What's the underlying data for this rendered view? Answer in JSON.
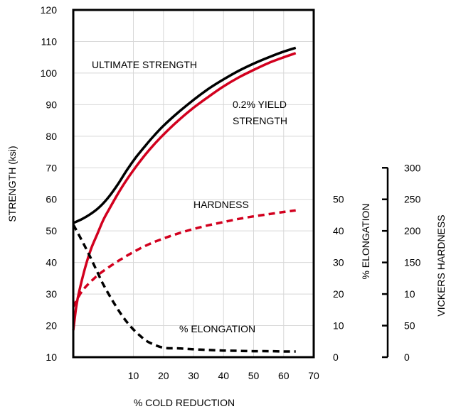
{
  "chart_data": {
    "type": "line",
    "xlabel": "% COLD REDUCTION",
    "ylabel": "STRENGTH (ksi)",
    "xlim": [
      -10,
      70
    ],
    "ylim": [
      10,
      120
    ],
    "x_ticks": [
      10,
      20,
      30,
      40,
      50,
      60,
      70
    ],
    "y_ticks": [
      10,
      20,
      30,
      40,
      50,
      60,
      70,
      80,
      90,
      100,
      110,
      120
    ],
    "grid": true,
    "legend": "none",
    "series": [
      {
        "name": "ULTIMATE STRENGTH",
        "color": "#000000",
        "style": "solid",
        "x": [
          -10,
          -7,
          -4,
          -1,
          2,
          5,
          8,
          11,
          14,
          17,
          20,
          25,
          30,
          35,
          40,
          45,
          50,
          55,
          60,
          64
        ],
        "y": [
          52.5,
          53.8,
          55.5,
          57.8,
          61,
          65,
          69.5,
          73.5,
          77,
          80.3,
          83.3,
          87.6,
          91.5,
          95,
          98,
          100.7,
          103,
          105,
          106.8,
          108
        ]
      },
      {
        "name": "0.2% YIELD STRENGTH",
        "color": "#d2001e",
        "style": "solid",
        "x": [
          -10,
          -9,
          -8,
          -6,
          -4,
          -2,
          0,
          2,
          5,
          8,
          11,
          14,
          17,
          20,
          25,
          30,
          35,
          40,
          45,
          50,
          55,
          60,
          64
        ],
        "y": [
          18.5,
          26,
          31,
          38.5,
          44.5,
          49,
          53.5,
          57,
          62,
          66.5,
          70.5,
          74.2,
          77.5,
          80.5,
          85,
          89,
          92.5,
          95.8,
          98.6,
          101,
          103.2,
          105,
          106.3
        ]
      },
      {
        "name": "HARDNESS",
        "color": "#d2001e",
        "style": "dashed",
        "x": [
          -10,
          -7,
          -3,
          0,
          5,
          10,
          15,
          20,
          25,
          30,
          35,
          40,
          45,
          50,
          55,
          60,
          64
        ],
        "y": [
          26,
          31,
          35,
          37.3,
          40.5,
          43.3,
          45.7,
          47.6,
          49.2,
          50.6,
          51.8,
          52.8,
          53.8,
          54.6,
          55.3,
          56,
          56.5
        ]
      },
      {
        "name": "% ELONGATION",
        "color": "#000000",
        "style": "dashed",
        "x": [
          -10,
          -8,
          -5,
          -2,
          0,
          3,
          6,
          9,
          12,
          15,
          20,
          25,
          30,
          35,
          40,
          45,
          50,
          55,
          60,
          64
        ],
        "y": [
          52,
          48.5,
          43,
          37,
          33,
          28,
          23.5,
          19.8,
          17,
          14.8,
          13,
          12.8,
          12.5,
          12.3,
          12.1,
          12,
          11.9,
          11.9,
          11.8,
          11.8
        ]
      }
    ],
    "annotations": [
      {
        "text": "ULTIMATE STRENGTH"
      },
      {
        "text": "0.2% YIELD",
        "text2": "STRENGTH"
      },
      {
        "text": "HARDNESS"
      },
      {
        "text": "% ELONGATION"
      }
    ],
    "secondary_axes": [
      {
        "label": "% ELONGATION",
        "ticks": [
          "0",
          "10",
          "20",
          "30",
          "40",
          "50"
        ],
        "tick_values_on_primary": [
          10,
          20,
          30,
          40,
          50,
          60
        ]
      },
      {
        "label": "VICKERS HARDNESS",
        "ticks": [
          "0",
          "50",
          "10",
          "150",
          "200",
          "250",
          "300"
        ],
        "tick_values_on_primary": [
          10,
          20,
          30,
          40,
          50,
          60,
          70
        ]
      }
    ]
  }
}
